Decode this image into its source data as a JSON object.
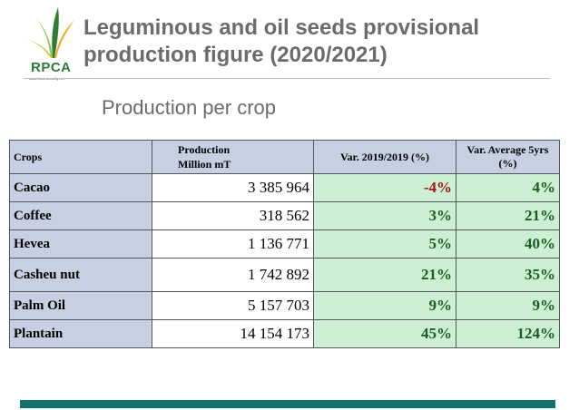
{
  "logo": {
    "text": "RPCA",
    "url": "www.food-security.net"
  },
  "title": {
    "line1": "Leguminous and oil seeds provisional",
    "line2": "production figure (2020/2021)"
  },
  "subtitle": "Production per crop",
  "table": {
    "headers": {
      "crops": "Crops",
      "production_line1": "Production",
      "production_line2": "Million mT",
      "var_year": "Var. 2019/2019 (%)",
      "var_avg": "Var. Average 5yrs (%)"
    },
    "rows": [
      {
        "crop": "Cacao",
        "production": "3 385 964",
        "var_year": "-4%",
        "var_avg": "4%"
      },
      {
        "crop": "Coffee",
        "production": "318 562",
        "var_year": "3%",
        "var_avg": "21%"
      },
      {
        "crop": "Hevea",
        "production": "1 136 771",
        "var_year": "5%",
        "var_avg": "40%"
      },
      {
        "crop": "Casheu nut",
        "production": "1 742 892",
        "var_year": "21%",
        "var_avg": "35%"
      },
      {
        "crop": "Palm Oil",
        "production": "5 157 703",
        "var_year": "9%",
        "var_avg": "9%"
      },
      {
        "crop": "Plantain",
        "production": "14 154 173",
        "var_year": "45%",
        "var_avg": "124%"
      }
    ]
  },
  "colors": {
    "header_bg": "#c7cfe3",
    "positive_bg": "#ccefd4",
    "positive_text": "#1b5e20",
    "negative_text": "#a31515",
    "accent_bar": "#12706e"
  }
}
